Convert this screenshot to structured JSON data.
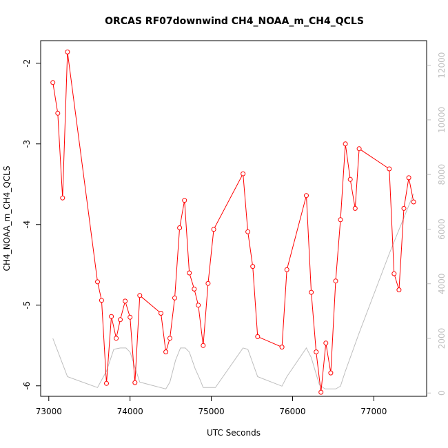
{
  "chart_data": {
    "type": "line",
    "title": "ORCAS RF07downwind CH4_NOAA_m_CH4_QCLS",
    "xlabel": "UTC Seconds",
    "ylabel": "CH4_NOAA_m_CH4_QCLS",
    "xlim": [
      72900,
      77650
    ],
    "ylim": [
      -6.13,
      -1.72
    ],
    "y2lim": [
      -120,
      12900
    ],
    "x_ticks": [
      73000,
      74000,
      75000,
      76000,
      77000
    ],
    "x_tick_labels": [
      "73000",
      "74000",
      "75000",
      "76000",
      "77000"
    ],
    "y_ticks": [
      -6,
      -5,
      -4,
      -3,
      -2
    ],
    "y_tick_labels": [
      "-6",
      "-5",
      "-4",
      "-3",
      "-2"
    ],
    "y2_ticks": [
      0,
      2000,
      4000,
      6000,
      8000,
      10000,
      12000
    ],
    "y2_tick_labels": [
      "0",
      "2000",
      "4000",
      "6000",
      "8000",
      "10000",
      "12000"
    ],
    "grid": false,
    "series": [
      {
        "color": "#ff0000",
        "marker": "circle",
        "points": [
          [
            73050,
            -2.24
          ],
          [
            73110,
            -2.62
          ],
          [
            73170,
            -3.67
          ],
          [
            73230,
            -1.86
          ],
          [
            73600,
            -4.71
          ],
          [
            73650,
            -4.94
          ],
          [
            73710,
            -5.97
          ],
          [
            73770,
            -5.14
          ],
          [
            73830,
            -5.41
          ],
          [
            73880,
            -5.18
          ],
          [
            73940,
            -4.95
          ],
          [
            74000,
            -5.15
          ],
          [
            74060,
            -5.96
          ],
          [
            74120,
            -4.88
          ],
          [
            74380,
            -5.1
          ],
          [
            74440,
            -5.58
          ],
          [
            74490,
            -5.41
          ],
          [
            74550,
            -4.91
          ],
          [
            74610,
            -4.04
          ],
          [
            74670,
            -3.7
          ],
          [
            74730,
            -4.6
          ],
          [
            74790,
            -4.8
          ],
          [
            74840,
            -5.0
          ],
          [
            74900,
            -5.5
          ],
          [
            74960,
            -4.73
          ],
          [
            75030,
            -4.06
          ],
          [
            75390,
            -3.37
          ],
          [
            75450,
            -4.09
          ],
          [
            75510,
            -4.52
          ],
          [
            75570,
            -5.39
          ],
          [
            75870,
            -5.52
          ],
          [
            75930,
            -4.56
          ],
          [
            76170,
            -3.64
          ],
          [
            76230,
            -4.84
          ],
          [
            76290,
            -5.58
          ],
          [
            76350,
            -6.08
          ],
          [
            76410,
            -5.47
          ],
          [
            76470,
            -5.84
          ],
          [
            76530,
            -4.7
          ],
          [
            76590,
            -3.94
          ],
          [
            76650,
            -3.0
          ],
          [
            76710,
            -3.44
          ],
          [
            76770,
            -3.8
          ],
          [
            76820,
            -3.06
          ],
          [
            77190,
            -3.31
          ],
          [
            77250,
            -4.61
          ],
          [
            77310,
            -4.81
          ],
          [
            77370,
            -3.8
          ],
          [
            77430,
            -3.42
          ],
          [
            77490,
            -3.72
          ]
        ]
      },
      {
        "color": "#bebebe",
        "marker": "none",
        "axis": "right",
        "points": [
          [
            73050,
            2000
          ],
          [
            73230,
            600
          ],
          [
            73600,
            200
          ],
          [
            73710,
            800
          ],
          [
            73800,
            1600
          ],
          [
            73880,
            1650
          ],
          [
            73950,
            1650
          ],
          [
            74000,
            1500
          ],
          [
            74120,
            400
          ],
          [
            74440,
            150
          ],
          [
            74490,
            400
          ],
          [
            74560,
            1200
          ],
          [
            74620,
            1650
          ],
          [
            74680,
            1650
          ],
          [
            74730,
            1500
          ],
          [
            74800,
            900
          ],
          [
            74860,
            500
          ],
          [
            74900,
            200
          ],
          [
            75050,
            200
          ],
          [
            75390,
            1650
          ],
          [
            75450,
            1600
          ],
          [
            75570,
            600
          ],
          [
            75870,
            250
          ],
          [
            75930,
            600
          ],
          [
            76170,
            1650
          ],
          [
            76230,
            1300
          ],
          [
            76330,
            300
          ],
          [
            76400,
            150
          ],
          [
            76530,
            150
          ],
          [
            76590,
            250
          ],
          [
            76650,
            800
          ],
          [
            76820,
            2200
          ],
          [
            77190,
            5100
          ],
          [
            77490,
            7300
          ]
        ]
      }
    ]
  }
}
